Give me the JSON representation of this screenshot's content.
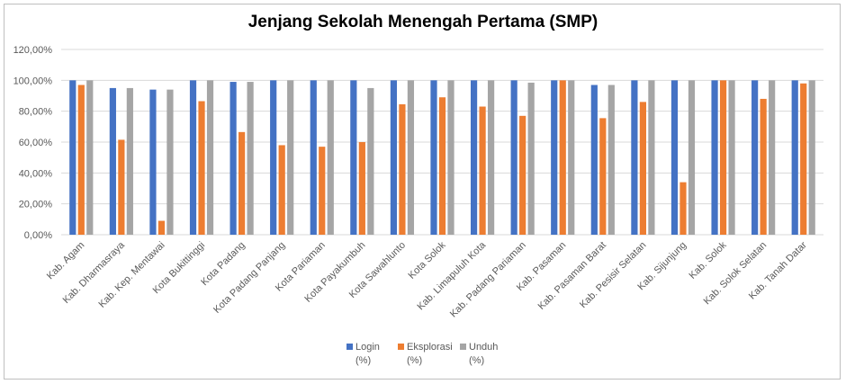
{
  "chart_data": {
    "type": "bar",
    "title": "Jenjang Sekolah Menengah Pertama (SMP)",
    "xlabel": "",
    "ylabel": "",
    "ylim": [
      0,
      120
    ],
    "yticks": [
      "0,00%",
      "20,00%",
      "40,00%",
      "60,00%",
      "80,00%",
      "100,00%",
      "120,00%"
    ],
    "grid": true,
    "legend_position": "bottom",
    "categories": [
      "Kab. Agam",
      "Kab. Dharmasraya",
      "Kab. Kep. Mentawai",
      "Kota Bukittinggi",
      "Kota Padang",
      "Kota Padang Panjang",
      "Kota Pariaman",
      "Kota Payakumbuh",
      "Kota Sawahlunto",
      "Kota Solok",
      "Kab. Limapuluh Kota",
      "Kab. Padang Pariaman",
      "Kab. Pasaman",
      "Kab. Pasaman Barat",
      "Kab. Pesisir Selatan",
      "Kab. Sijunjung",
      "Kab. Solok",
      "Kab. Solok Selatan",
      "Kab. Tanah Datar"
    ],
    "series": [
      {
        "name": "Login (%)",
        "legend_lines": [
          "Login",
          "(%)"
        ],
        "color": "#4472c4",
        "values": [
          100,
          95,
          94,
          100,
          99,
          100,
          100,
          100,
          100,
          100,
          100,
          100,
          100,
          97,
          100,
          100,
          100,
          100,
          100
        ]
      },
      {
        "name": "Eksplorasi (%)",
        "legend_lines": [
          "Eksplorasi",
          "(%)"
        ],
        "color": "#ed7d31",
        "values": [
          97,
          61.5,
          9,
          86.5,
          66.5,
          58,
          57,
          60,
          84.5,
          89,
          83,
          77,
          100,
          75.5,
          86,
          34,
          100,
          88,
          98
        ]
      },
      {
        "name": "Unduh (%)",
        "legend_lines": [
          "Unduh",
          "(%)"
        ],
        "color": "#a5a5a5",
        "values": [
          100,
          95,
          94,
          100,
          99,
          100,
          100,
          95,
          100,
          100,
          100,
          98.5,
          100,
          97,
          100,
          100,
          100,
          100,
          100
        ]
      }
    ]
  }
}
